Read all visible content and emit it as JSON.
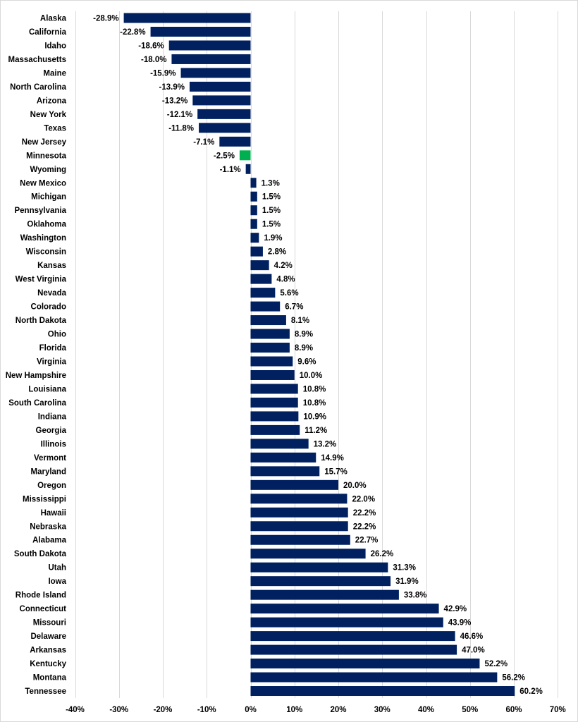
{
  "chart_data": {
    "type": "bar",
    "orientation": "horizontal",
    "title": "",
    "xlabel": "",
    "ylabel": "",
    "xlim": [
      -40,
      70
    ],
    "x_ticks": [
      -40,
      -30,
      -20,
      -10,
      0,
      10,
      20,
      30,
      40,
      50,
      60,
      70
    ],
    "x_tick_labels": [
      "-40%",
      "-30%",
      "-20%",
      "-10%",
      "0%",
      "10%",
      "20%",
      "30%",
      "40%",
      "50%",
      "60%",
      "70%"
    ],
    "grid": "vertical",
    "legend": "none",
    "colors": {
      "default": "#002060",
      "highlight": "#00B050"
    },
    "highlight": "Minnesota",
    "categories": [
      "Alaska",
      "California",
      "Idaho",
      "Massachusetts",
      "Maine",
      "North Carolina",
      "Arizona",
      "New York",
      "Texas",
      "New Jersey",
      "Minnesota",
      "Wyoming",
      "New Mexico",
      "Michigan",
      "Pennsylvania",
      "Oklahoma",
      "Washington",
      "Wisconsin",
      "Kansas",
      "West Virginia",
      "Nevada",
      "Colorado",
      "North Dakota",
      "Ohio",
      "Florida",
      "Virginia",
      "New Hampshire",
      "Louisiana",
      "South Carolina",
      "Indiana",
      "Georgia",
      "Illinois",
      "Vermont",
      "Maryland",
      "Oregon",
      "Mississippi",
      "Hawaii",
      "Nebraska",
      "Alabama",
      "South Dakota",
      "Utah",
      "Iowa",
      "Rhode Island",
      "Connecticut",
      "Missouri",
      "Delaware",
      "Arkansas",
      "Kentucky",
      "Montana",
      "Tennessee"
    ],
    "values": [
      -28.9,
      -22.8,
      -18.6,
      -18.0,
      -15.9,
      -13.9,
      -13.2,
      -12.1,
      -11.8,
      -7.1,
      -2.5,
      -1.1,
      1.3,
      1.5,
      1.5,
      1.5,
      1.9,
      2.8,
      4.2,
      4.8,
      5.6,
      6.7,
      8.1,
      8.9,
      8.9,
      9.6,
      10.0,
      10.8,
      10.8,
      10.9,
      11.2,
      13.2,
      14.9,
      15.7,
      20.0,
      22.0,
      22.2,
      22.2,
      22.7,
      26.2,
      31.3,
      31.9,
      33.8,
      42.9,
      43.9,
      46.6,
      47.0,
      52.2,
      56.2,
      60.2
    ],
    "value_labels": [
      "-28.9%",
      "-22.8%",
      "-18.6%",
      "-18.0%",
      "-15.9%",
      "-13.9%",
      "-13.2%",
      "-12.1%",
      "-11.8%",
      "-7.1%",
      "-2.5%",
      "-1.1%",
      "1.3%",
      "1.5%",
      "1.5%",
      "1.5%",
      "1.9%",
      "2.8%",
      "4.2%",
      "4.8%",
      "5.6%",
      "6.7%",
      "8.1%",
      "8.9%",
      "8.9%",
      "9.6%",
      "10.0%",
      "10.8%",
      "10.8%",
      "10.9%",
      "11.2%",
      "13.2%",
      "14.9%",
      "15.7%",
      "20.0%",
      "22.0%",
      "22.2%",
      "22.2%",
      "22.7%",
      "26.2%",
      "31.3%",
      "31.9%",
      "33.8%",
      "42.9%",
      "43.9%",
      "46.6%",
      "47.0%",
      "52.2%",
      "56.2%",
      "60.2%"
    ]
  }
}
